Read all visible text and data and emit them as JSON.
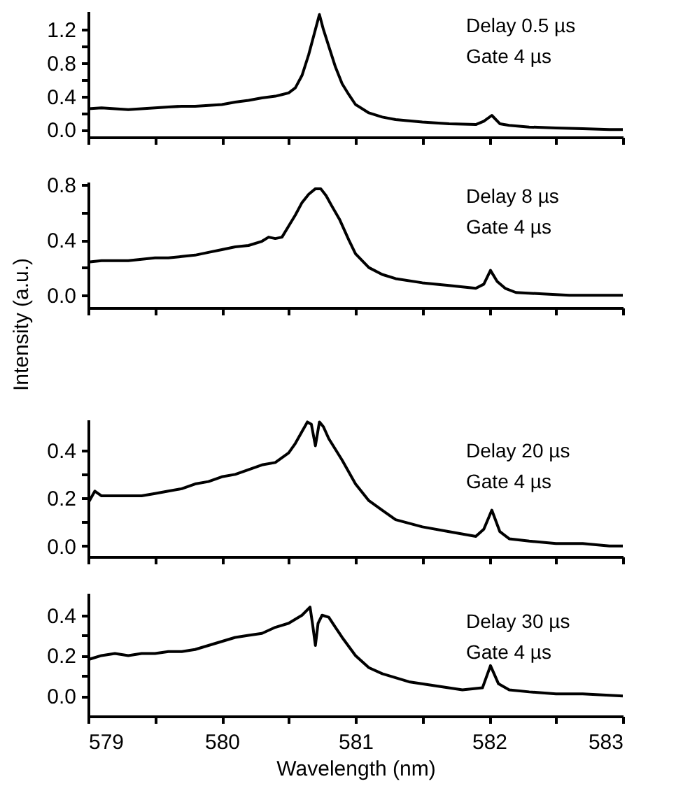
{
  "chart_data": [
    {
      "type": "line",
      "xlim": [
        579,
        583
      ],
      "ylim": [
        -0.09,
        1.42
      ],
      "tick_labels": "y",
      "grid": false,
      "line_style": "solid",
      "xticks": [
        579,
        {
          "value": 579.5,
          "label": null
        },
        580,
        {
          "value": 580.5,
          "label": null
        },
        581,
        {
          "value": 581.5,
          "label": null
        },
        582,
        {
          "value": 582.5,
          "label": null
        },
        583
      ],
      "yticks": [
        {
          "value": 0,
          "label": "0.0"
        },
        {
          "value": 0.2,
          "label": null
        },
        {
          "value": 0.4,
          "label": "0.4"
        },
        {
          "value": 0.6,
          "label": null
        },
        {
          "value": 0.8,
          "label": "0.8"
        },
        {
          "value": 1.0,
          "label": null
        },
        {
          "value": 1.2,
          "label": "1.2"
        }
      ],
      "annotations": [
        "Delay 0.5 µs",
        "Gate 4 µs"
      ],
      "series": [
        {
          "color": "#000000",
          "x": [
            579.0,
            579.1,
            579.2,
            579.3,
            579.4,
            579.5,
            579.6,
            579.7,
            579.8,
            579.9,
            580.0,
            580.1,
            580.2,
            580.3,
            580.4,
            580.45,
            580.5,
            580.55,
            580.6,
            580.65,
            580.7,
            580.73,
            580.76,
            580.8,
            580.85,
            580.9,
            580.95,
            581.0,
            581.1,
            581.2,
            581.3,
            581.5,
            581.7,
            581.9,
            581.96,
            582.02,
            582.08,
            582.15,
            582.3,
            582.5,
            582.7,
            582.9,
            583.0
          ],
          "values": [
            0.25,
            0.26,
            0.25,
            0.24,
            0.25,
            0.26,
            0.27,
            0.28,
            0.28,
            0.29,
            0.3,
            0.33,
            0.35,
            0.38,
            0.4,
            0.42,
            0.44,
            0.5,
            0.65,
            0.9,
            1.2,
            1.38,
            1.2,
            1.0,
            0.75,
            0.55,
            0.42,
            0.3,
            0.2,
            0.15,
            0.12,
            0.09,
            0.07,
            0.06,
            0.1,
            0.17,
            0.07,
            0.05,
            0.03,
            0.02,
            0.01,
            0.0,
            0.0
          ]
        }
      ]
    },
    {
      "type": "line",
      "ylabel": "Intensity (a.u.)",
      "xlim": [
        579,
        583
      ],
      "ylim": [
        -0.09,
        0.82
      ],
      "tick_labels": "y",
      "grid": false,
      "line_style": "solid",
      "xticks": [
        579,
        {
          "value": 579.5,
          "label": null
        },
        580,
        {
          "value": 580.5,
          "label": null
        },
        581,
        {
          "value": 581.5,
          "label": null
        },
        582,
        {
          "value": 582.5,
          "label": null
        },
        583
      ],
      "yticks": [
        {
          "value": 0,
          "label": "0.0"
        },
        {
          "value": 0.2,
          "label": null
        },
        {
          "value": 0.4,
          "label": "0.4"
        },
        {
          "value": 0.6,
          "label": null
        },
        {
          "value": 0.8,
          "label": "0.8"
        }
      ],
      "annotations": [
        "Delay 8 µs",
        "Gate 4 µs"
      ],
      "series": [
        {
          "color": "#000000",
          "x": [
            579.0,
            579.1,
            579.2,
            579.3,
            579.4,
            579.5,
            579.6,
            579.7,
            579.8,
            579.9,
            580.0,
            580.1,
            580.2,
            580.3,
            580.35,
            580.4,
            580.45,
            580.5,
            580.55,
            580.6,
            580.65,
            580.7,
            580.74,
            580.78,
            580.82,
            580.88,
            580.95,
            581.0,
            581.1,
            581.2,
            581.3,
            581.5,
            581.7,
            581.9,
            581.96,
            582.01,
            582.06,
            582.12,
            582.2,
            582.4,
            582.6,
            582.8,
            583.0
          ],
          "values": [
            0.24,
            0.25,
            0.25,
            0.25,
            0.26,
            0.27,
            0.27,
            0.28,
            0.29,
            0.31,
            0.33,
            0.35,
            0.36,
            0.39,
            0.42,
            0.41,
            0.42,
            0.5,
            0.58,
            0.67,
            0.73,
            0.77,
            0.77,
            0.72,
            0.65,
            0.55,
            0.4,
            0.3,
            0.2,
            0.15,
            0.12,
            0.09,
            0.07,
            0.05,
            0.08,
            0.18,
            0.1,
            0.05,
            0.02,
            0.01,
            0.0,
            0.0,
            0.0
          ]
        }
      ]
    },
    {
      "type": "line",
      "xlim": [
        579,
        583
      ],
      "ylim": [
        -0.045,
        0.53
      ],
      "tick_labels": "y",
      "grid": false,
      "line_style": "solid",
      "xticks": [
        579,
        {
          "value": 579.5,
          "label": null
        },
        580,
        {
          "value": 580.5,
          "label": null
        },
        581,
        {
          "value": 581.5,
          "label": null
        },
        582,
        {
          "value": 582.5,
          "label": null
        },
        583
      ],
      "yticks": [
        {
          "value": 0,
          "label": "0.0"
        },
        {
          "value": 0.1,
          "label": null
        },
        {
          "value": 0.2,
          "label": "0.2"
        },
        {
          "value": 0.3,
          "label": null
        },
        {
          "value": 0.4,
          "label": "0.4"
        }
      ],
      "annotations": [
        "Delay 20 µs",
        "Gate 4 µs"
      ],
      "series": [
        {
          "color": "#000000",
          "x": [
            579.0,
            579.05,
            579.1,
            579.2,
            579.3,
            579.4,
            579.5,
            579.6,
            579.7,
            579.8,
            579.9,
            580.0,
            580.1,
            580.2,
            580.3,
            580.4,
            580.5,
            580.55,
            580.6,
            580.64,
            580.67,
            580.7,
            580.73,
            580.76,
            580.8,
            580.9,
            581.0,
            581.1,
            581.2,
            581.3,
            581.5,
            581.7,
            581.9,
            581.96,
            582.02,
            582.08,
            582.15,
            582.3,
            582.5,
            582.7,
            582.9,
            583.0
          ],
          "values": [
            0.18,
            0.23,
            0.21,
            0.21,
            0.21,
            0.21,
            0.22,
            0.23,
            0.24,
            0.26,
            0.27,
            0.29,
            0.3,
            0.32,
            0.34,
            0.35,
            0.39,
            0.43,
            0.48,
            0.52,
            0.51,
            0.42,
            0.52,
            0.5,
            0.45,
            0.36,
            0.26,
            0.19,
            0.15,
            0.11,
            0.08,
            0.06,
            0.04,
            0.07,
            0.15,
            0.06,
            0.03,
            0.02,
            0.01,
            0.01,
            0.0,
            0.0
          ]
        }
      ]
    },
    {
      "type": "line",
      "xlabel": "Wavelength (nm)",
      "xlim": [
        579,
        583
      ],
      "ylim": [
        -0.1,
        0.51
      ],
      "grid": false,
      "line_style": "solid",
      "xticks": [
        579,
        {
          "value": 579.5,
          "label": null
        },
        580,
        {
          "value": 580.5,
          "label": null
        },
        581,
        {
          "value": 581.5,
          "label": null
        },
        582,
        {
          "value": 582.5,
          "label": null
        },
        583
      ],
      "yticks": [
        {
          "value": 0,
          "label": "0.0"
        },
        {
          "value": 0.1,
          "label": null
        },
        {
          "value": 0.2,
          "label": "0.2"
        },
        {
          "value": 0.3,
          "label": null
        },
        {
          "value": 0.4,
          "label": "0.4"
        }
      ],
      "annotations": [
        "Delay 30 µs",
        "Gate 4 µs"
      ],
      "series": [
        {
          "color": "#000000",
          "x": [
            579.0,
            579.1,
            579.2,
            579.3,
            579.4,
            579.5,
            579.6,
            579.7,
            579.8,
            579.9,
            580.0,
            580.1,
            580.2,
            580.3,
            580.4,
            580.5,
            580.6,
            580.66,
            580.68,
            580.7,
            580.72,
            580.75,
            580.8,
            580.85,
            580.9,
            581.0,
            581.1,
            581.2,
            581.4,
            581.6,
            581.8,
            581.95,
            582.01,
            582.07,
            582.15,
            582.3,
            582.5,
            582.7,
            583.0
          ],
          "values": [
            0.18,
            0.2,
            0.21,
            0.2,
            0.21,
            0.21,
            0.22,
            0.22,
            0.23,
            0.25,
            0.27,
            0.29,
            0.3,
            0.31,
            0.34,
            0.36,
            0.4,
            0.44,
            0.35,
            0.25,
            0.36,
            0.4,
            0.39,
            0.34,
            0.29,
            0.2,
            0.14,
            0.11,
            0.07,
            0.05,
            0.03,
            0.04,
            0.15,
            0.06,
            0.03,
            0.02,
            0.01,
            0.01,
            0.0
          ]
        }
      ]
    }
  ]
}
